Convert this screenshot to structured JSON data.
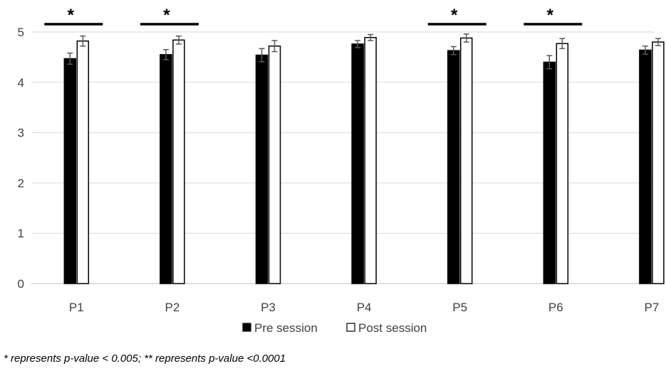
{
  "chart_data": {
    "type": "bar",
    "categories": [
      "P1",
      "P2",
      "P3",
      "P4",
      "P5",
      "P6",
      "P7"
    ],
    "ylim": [
      0,
      5
    ],
    "yticks": [
      0,
      1,
      2,
      3,
      4,
      5
    ],
    "grid": true,
    "legend": "bottom",
    "series": [
      {
        "name": "Pre session",
        "color": "#000000",
        "values": [
          4.47,
          4.55,
          4.54,
          4.76,
          4.63,
          4.4,
          4.64
        ],
        "errors": [
          0.11,
          0.1,
          0.13,
          0.07,
          0.08,
          0.13,
          0.08
        ]
      },
      {
        "name": "Post session",
        "color": "#ffffff",
        "values": [
          4.82,
          4.84,
          4.72,
          4.89,
          4.88,
          4.77,
          4.8
        ],
        "errors": [
          0.1,
          0.08,
          0.11,
          0.06,
          0.08,
          0.1,
          0.07
        ]
      }
    ],
    "significance": [
      {
        "category": "P1",
        "marker": "*"
      },
      {
        "category": "P2",
        "marker": "*"
      },
      {
        "category": "P5",
        "marker": "*"
      },
      {
        "category": "P6",
        "marker": "*"
      }
    ]
  },
  "footnote": "* represents p-value < 0.005; ** represents p-value <0.0001"
}
